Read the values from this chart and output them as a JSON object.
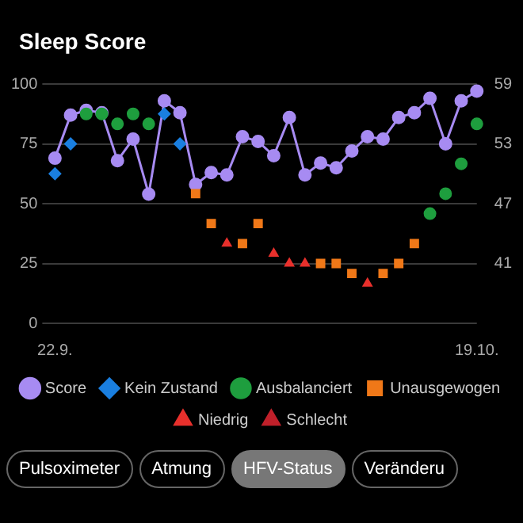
{
  "chart_data": {
    "type": "line",
    "title": "Sleep Score",
    "categories": [
      "22.9.",
      null,
      null,
      null,
      null,
      null,
      null,
      null,
      null,
      null,
      null,
      null,
      null,
      null,
      null,
      null,
      null,
      null,
      null,
      null,
      null,
      null,
      null,
      null,
      null,
      null,
      null,
      "19.10."
    ],
    "series": [
      {
        "name": "Score",
        "type": "line",
        "marker": "circle",
        "color": "#a78bf2",
        "values": [
          69,
          87,
          89,
          88,
          68,
          77,
          54,
          93,
          88,
          58,
          63,
          62,
          78,
          76,
          70,
          86,
          62,
          67,
          65,
          72,
          78,
          77,
          86,
          88,
          94,
          75,
          93,
          97
        ]
      },
      {
        "name": "Kein Zustand",
        "type": "scatter",
        "marker": "diamond",
        "axis": "y2",
        "color": "#1a7fe0",
        "values": [
          50,
          53,
          null,
          null,
          null,
          null,
          null,
          56,
          53,
          null,
          null,
          null,
          null,
          null,
          null,
          null,
          null,
          null,
          null,
          null,
          null,
          null,
          null,
          null,
          null,
          null,
          null,
          null
        ]
      },
      {
        "name": "Ausbalanciert",
        "type": "scatter",
        "marker": "circle",
        "axis": "y2",
        "color": "#1e9e3e",
        "values": [
          null,
          null,
          56,
          56,
          55,
          56,
          55,
          null,
          null,
          null,
          null,
          null,
          null,
          null,
          null,
          null,
          null,
          null,
          null,
          null,
          null,
          null,
          null,
          null,
          46,
          48,
          51,
          55
        ]
      },
      {
        "name": "Unausgewogen",
        "type": "scatter",
        "marker": "square",
        "axis": "y2",
        "color": "#f07818",
        "values": [
          null,
          null,
          null,
          null,
          null,
          null,
          null,
          null,
          null,
          48,
          45,
          null,
          43,
          45,
          null,
          null,
          null,
          41,
          41,
          40,
          null,
          40,
          41,
          43,
          null,
          null,
          null,
          null
        ]
      },
      {
        "name": "Niedrig",
        "type": "scatter",
        "marker": "triangle",
        "axis": "y2",
        "color": "#e8302c",
        "values": [
          null,
          null,
          null,
          null,
          null,
          null,
          null,
          null,
          null,
          null,
          null,
          43,
          null,
          null,
          42,
          41,
          41,
          null,
          null,
          null,
          39,
          null,
          null,
          null,
          null,
          null,
          null,
          null
        ]
      },
      {
        "name": "Schlecht",
        "type": "scatter",
        "marker": "triangle",
        "axis": "y2",
        "color": "#c0202a",
        "values": [
          null,
          null,
          null,
          null,
          null,
          null,
          null,
          null,
          null,
          null,
          null,
          null,
          null,
          null,
          null,
          null,
          null,
          null,
          null,
          null,
          null,
          null,
          null,
          null,
          null,
          null,
          null,
          null
        ]
      }
    ],
    "ylim": [
      0,
      100
    ],
    "yticks": [
      0,
      25,
      50,
      75,
      100
    ],
    "y2lim": [
      35,
      59
    ],
    "y2ticks": [
      41,
      47,
      53,
      59
    ],
    "grid": "y",
    "legend": "bottom",
    "annotations": [
      "Pulsoximeter",
      "Atmung",
      "HFV-Status",
      "Veränderu"
    ]
  }
}
